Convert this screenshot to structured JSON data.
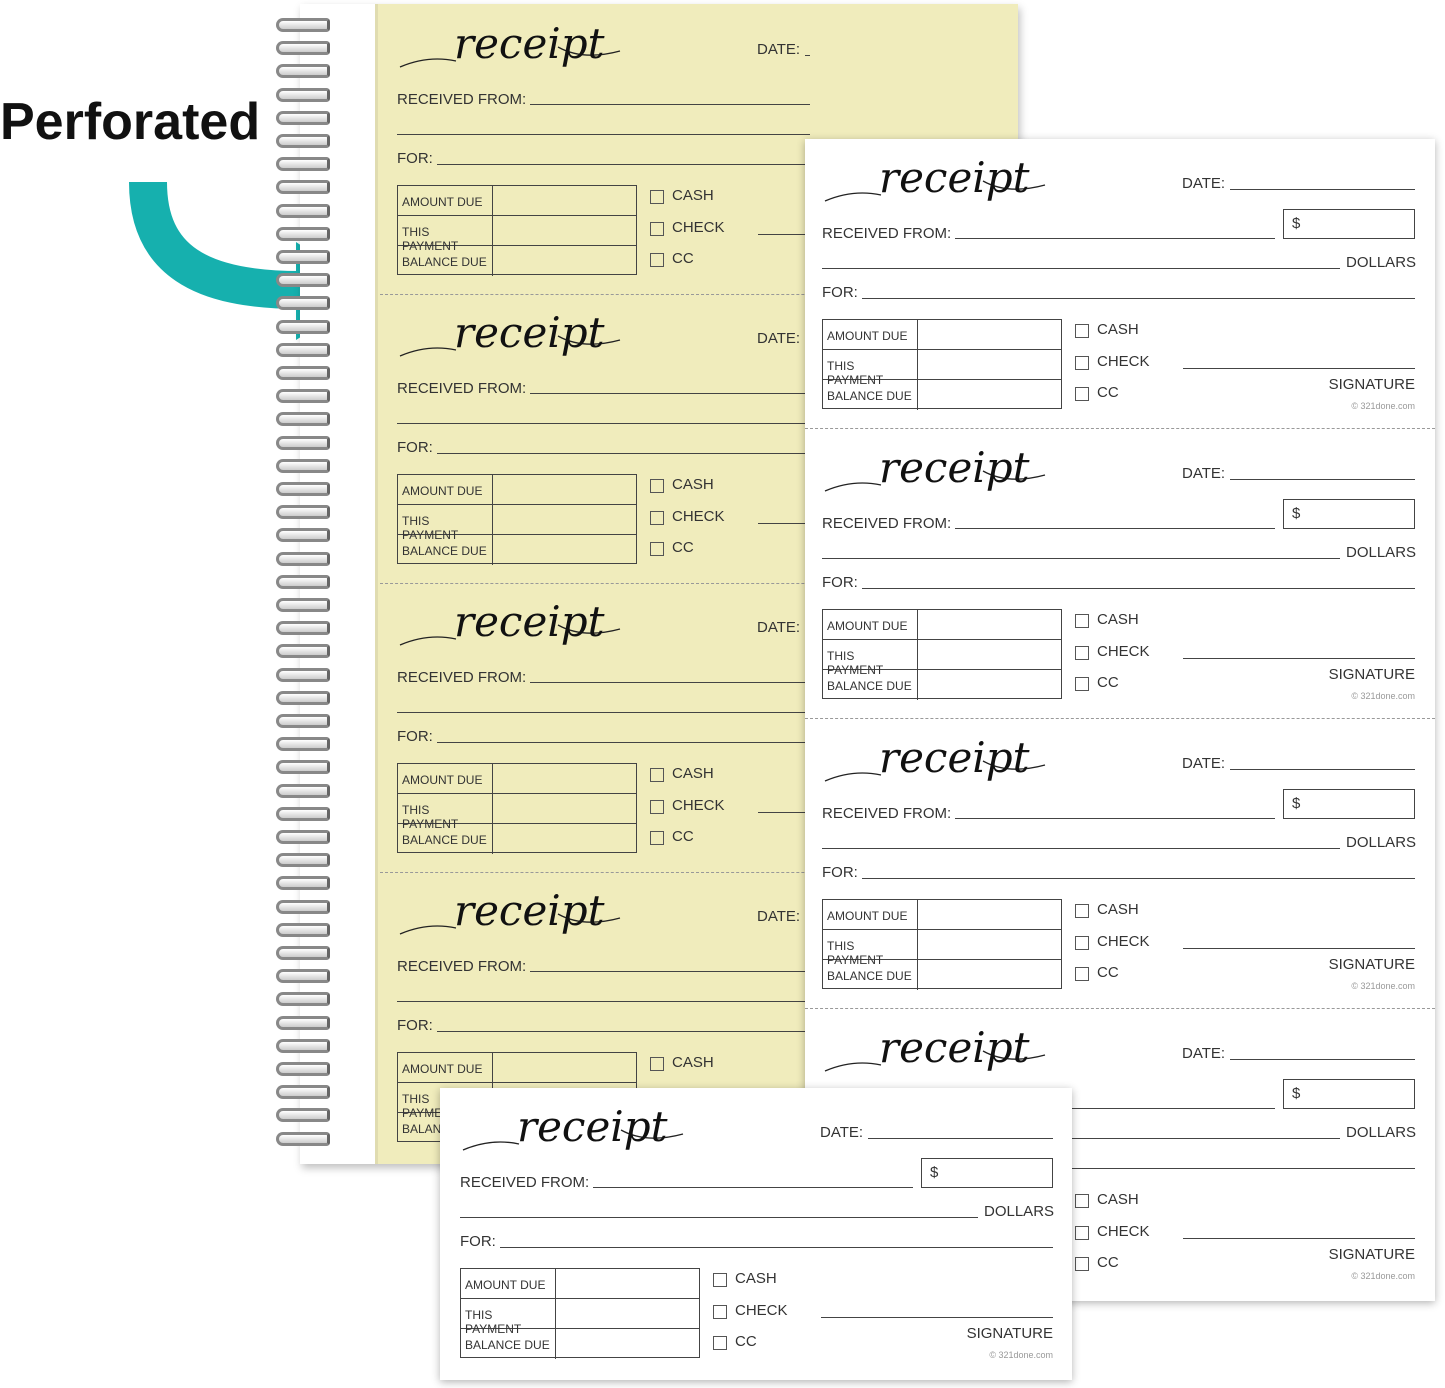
{
  "callout": {
    "label": "Perforated",
    "arrow_color": "#16b0ae",
    "arrow_icon": "curved-arrow-right"
  },
  "receipt": {
    "title": "receipt",
    "date_label": "DATE:",
    "currency_symbol": "$",
    "received_from_label": "RECEIVED FROM:",
    "dollars_label": "DOLLARS",
    "for_label": "FOR:",
    "table_rows": [
      "AMOUNT DUE",
      "THIS PAYMENT",
      "BALANCE DUE"
    ],
    "payment_methods": [
      "CASH",
      "CHECK",
      "CC"
    ],
    "signature_label": "SIGNATURE",
    "copyright": "© 321done.com"
  },
  "colors": {
    "book_page": "#f0ecbc",
    "sheet": "#ffffff",
    "accent": "#16b0ae"
  }
}
